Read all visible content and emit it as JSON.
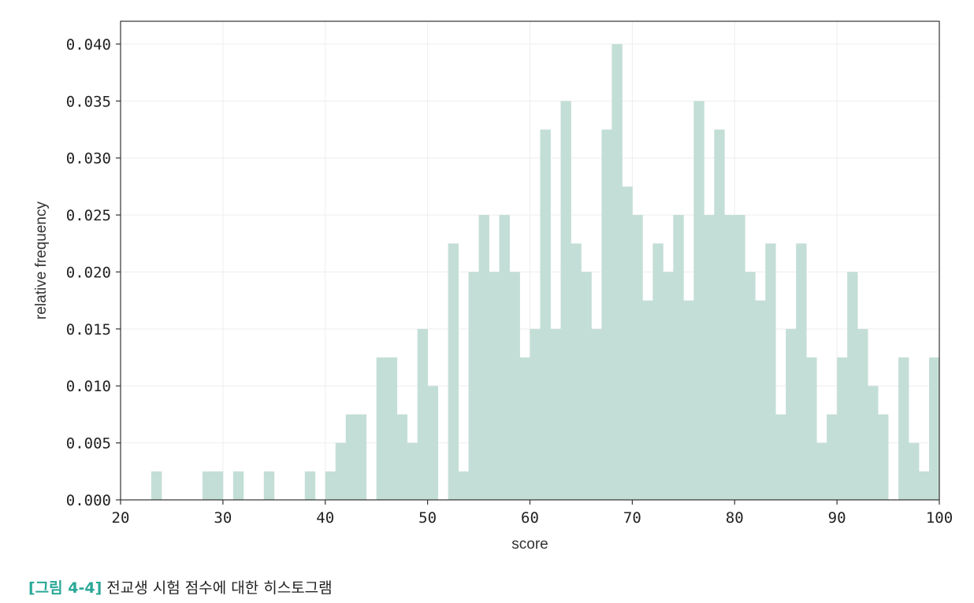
{
  "chart_data": {
    "type": "bar",
    "title": "",
    "xlabel": "score",
    "ylabel": "relative frequency",
    "xlim": [
      20,
      100
    ],
    "ylim": [
      0,
      0.042
    ],
    "grid": true,
    "bar_color": "#c3ded6",
    "xticks": [
      "20",
      "30",
      "40",
      "50",
      "60",
      "70",
      "80",
      "90",
      "100"
    ],
    "yticks": [
      "0.000",
      "0.005",
      "0.010",
      "0.015",
      "0.020",
      "0.025",
      "0.030",
      "0.035",
      "0.040"
    ],
    "bins": [
      [
        23,
        0.0025
      ],
      [
        28,
        0.0025
      ],
      [
        29,
        0.0025
      ],
      [
        31,
        0.0025
      ],
      [
        34,
        0.0025
      ],
      [
        38,
        0.0025
      ],
      [
        40,
        0.0025
      ],
      [
        41,
        0.005
      ],
      [
        42,
        0.0075
      ],
      [
        43,
        0.0075
      ],
      [
        45,
        0.0125
      ],
      [
        46,
        0.0125
      ],
      [
        47,
        0.0075
      ],
      [
        48,
        0.005
      ],
      [
        49,
        0.015
      ],
      [
        50,
        0.01
      ],
      [
        52,
        0.0225
      ],
      [
        53,
        0.0025
      ],
      [
        54,
        0.02
      ],
      [
        55,
        0.025
      ],
      [
        56,
        0.02
      ],
      [
        57,
        0.025
      ],
      [
        58,
        0.02
      ],
      [
        59,
        0.0125
      ],
      [
        60,
        0.015
      ],
      [
        61,
        0.0325
      ],
      [
        62,
        0.015
      ],
      [
        63,
        0.035
      ],
      [
        64,
        0.0225
      ],
      [
        65,
        0.02
      ],
      [
        66,
        0.015
      ],
      [
        67,
        0.0325
      ],
      [
        68,
        0.04
      ],
      [
        69,
        0.0275
      ],
      [
        70,
        0.025
      ],
      [
        71,
        0.0175
      ],
      [
        72,
        0.0225
      ],
      [
        73,
        0.02
      ],
      [
        74,
        0.025
      ],
      [
        75,
        0.0175
      ],
      [
        76,
        0.035
      ],
      [
        77,
        0.025
      ],
      [
        78,
        0.0325
      ],
      [
        79,
        0.025
      ],
      [
        80,
        0.025
      ],
      [
        81,
        0.02
      ],
      [
        82,
        0.0175
      ],
      [
        83,
        0.0225
      ],
      [
        84,
        0.0075
      ],
      [
        85,
        0.015
      ],
      [
        86,
        0.0225
      ],
      [
        87,
        0.0125
      ],
      [
        88,
        0.005
      ],
      [
        89,
        0.0075
      ],
      [
        90,
        0.0125
      ],
      [
        91,
        0.02
      ],
      [
        92,
        0.015
      ],
      [
        93,
        0.01
      ],
      [
        94,
        0.0075
      ],
      [
        96,
        0.0125
      ],
      [
        97,
        0.005
      ],
      [
        98,
        0.0025
      ],
      [
        99,
        0.0125
      ]
    ],
    "bin_width": 1
  },
  "caption": {
    "figure_label": "[그림 4-4]",
    "text": "전교생 시험 점수에 대한 히스토그램"
  }
}
